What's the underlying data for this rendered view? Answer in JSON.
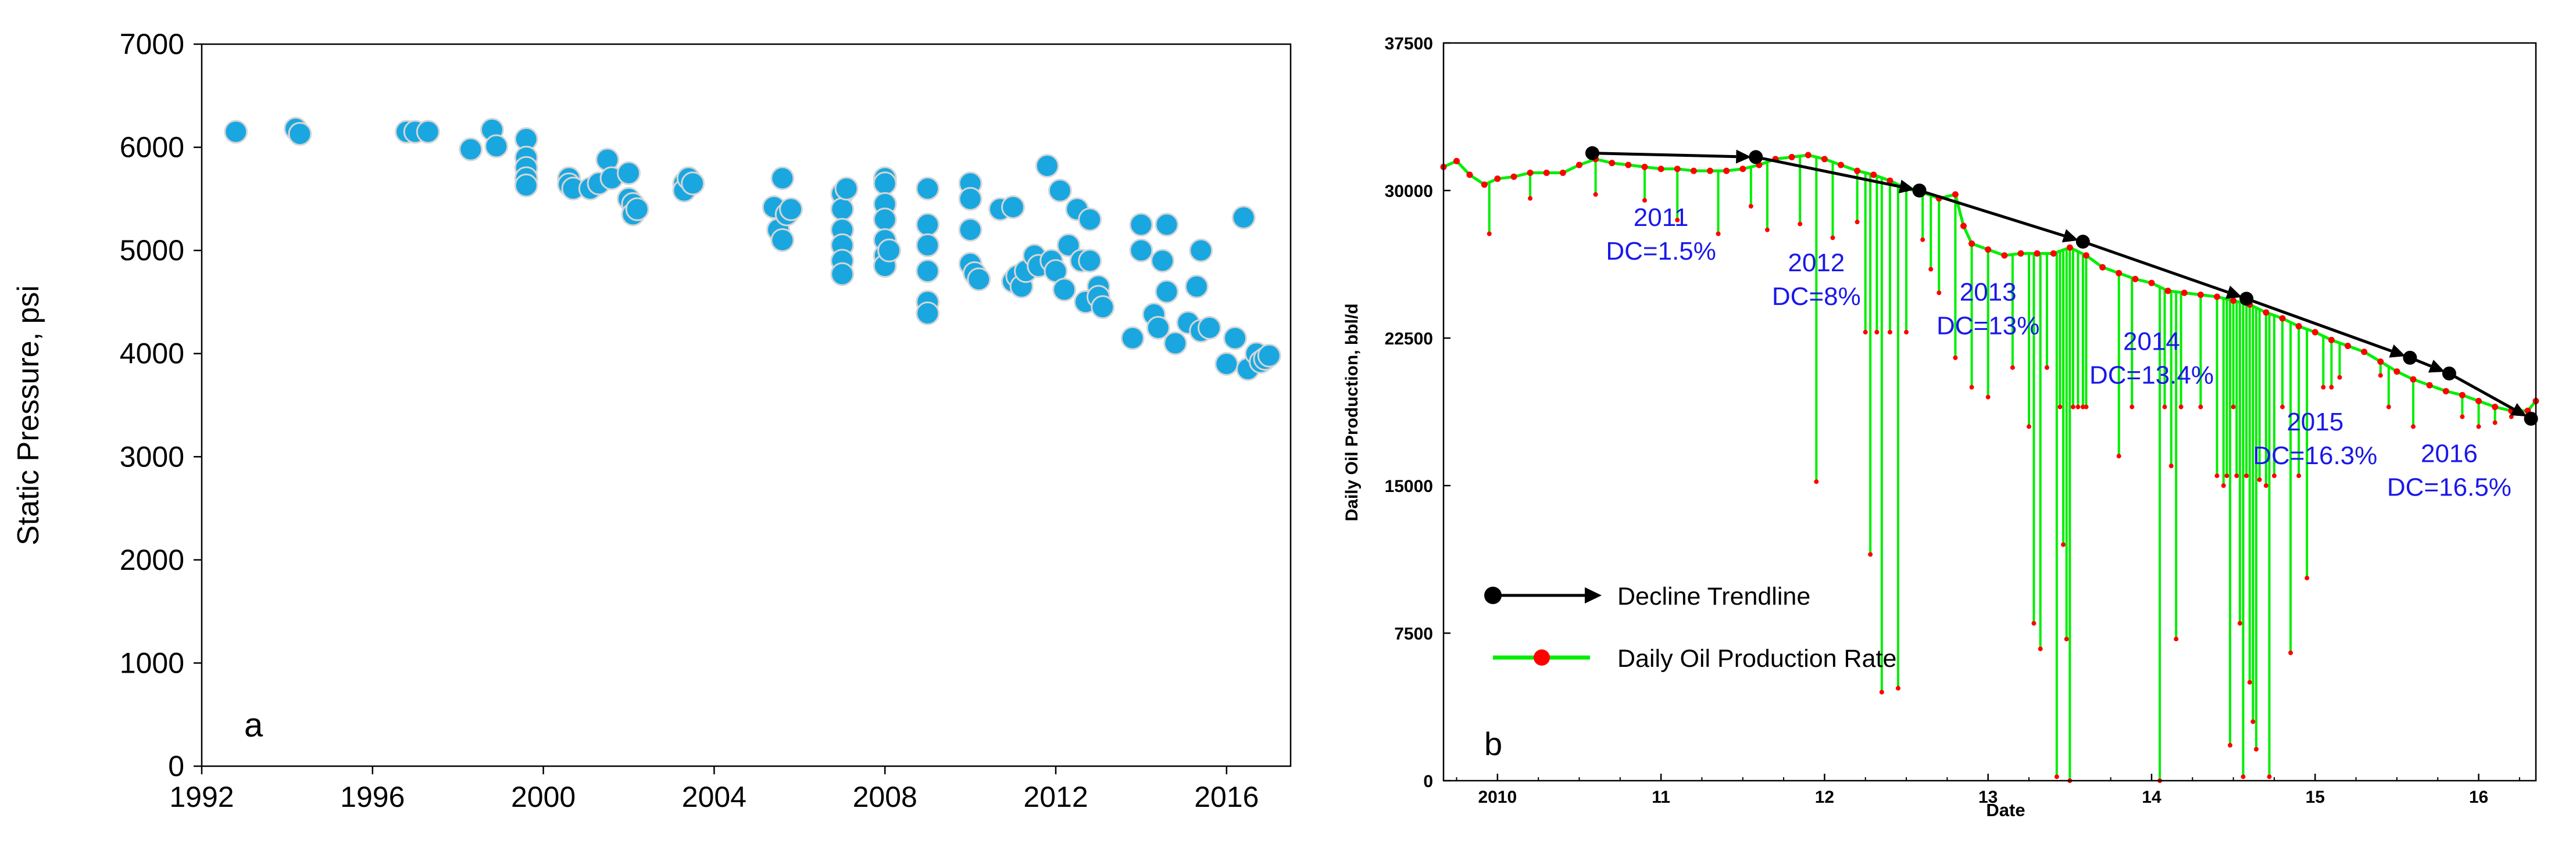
{
  "chart_data": [
    {
      "panel": "a",
      "type": "scatter",
      "title": "",
      "xlabel": "",
      "ylabel": "Static Pressure, psi",
      "xlim": [
        1992,
        2017.5
      ],
      "ylim": [
        0,
        7000
      ],
      "xticks": [
        1992,
        1996,
        2000,
        2004,
        2008,
        2012,
        2016
      ],
      "yticks": [
        0,
        1000,
        2000,
        3000,
        4000,
        5000,
        6000,
        7000
      ],
      "grid": false,
      "marker_color": "#1AA7E0",
      "points": [
        [
          1992.8,
          6150
        ],
        [
          1994.2,
          6180
        ],
        [
          1994.3,
          6130
        ],
        [
          1996.8,
          6150
        ],
        [
          1997.0,
          6150
        ],
        [
          1997.3,
          6150
        ],
        [
          1998.3,
          5980
        ],
        [
          1998.8,
          6170
        ],
        [
          1998.9,
          6010
        ],
        [
          1999.6,
          6080
        ],
        [
          1999.6,
          5900
        ],
        [
          1999.6,
          5800
        ],
        [
          1999.6,
          5700
        ],
        [
          1999.6,
          5630
        ],
        [
          2000.6,
          5700
        ],
        [
          2000.6,
          5640
        ],
        [
          2000.7,
          5600
        ],
        [
          2001.1,
          5600
        ],
        [
          2001.3,
          5650
        ],
        [
          2001.5,
          5880
        ],
        [
          2001.6,
          5700
        ],
        [
          2002.0,
          5750
        ],
        [
          2002.0,
          5500
        ],
        [
          2002.1,
          5450
        ],
        [
          2002.1,
          5350
        ],
        [
          2002.2,
          5400
        ],
        [
          2003.3,
          5650
        ],
        [
          2003.3,
          5580
        ],
        [
          2003.4,
          5700
        ],
        [
          2003.5,
          5650
        ],
        [
          2005.4,
          5420
        ],
        [
          2005.5,
          5200
        ],
        [
          2005.6,
          5700
        ],
        [
          2005.6,
          5100
        ],
        [
          2005.7,
          5350
        ],
        [
          2005.8,
          5400
        ],
        [
          2007.0,
          5550
        ],
        [
          2007.0,
          5400
        ],
        [
          2007.0,
          5200
        ],
        [
          2007.0,
          5050
        ],
        [
          2007.0,
          4900
        ],
        [
          2007.0,
          4770
        ],
        [
          2007.1,
          5600
        ],
        [
          2008.0,
          5700
        ],
        [
          2008.0,
          5650
        ],
        [
          2008.0,
          5450
        ],
        [
          2008.0,
          5300
        ],
        [
          2008.0,
          5100
        ],
        [
          2008.0,
          4950
        ],
        [
          2008.0,
          4850
        ],
        [
          2008.1,
          5000
        ],
        [
          2009.0,
          5600
        ],
        [
          2009.0,
          5250
        ],
        [
          2009.0,
          5050
        ],
        [
          2009.0,
          4800
        ],
        [
          2009.0,
          4500
        ],
        [
          2009.0,
          4390
        ],
        [
          2010.0,
          5650
        ],
        [
          2010.0,
          5500
        ],
        [
          2010.0,
          5200
        ],
        [
          2010.0,
          4870
        ],
        [
          2010.1,
          4780
        ],
        [
          2010.2,
          4720
        ],
        [
          2010.7,
          5400
        ],
        [
          2011.0,
          5420
        ],
        [
          2011.0,
          4700
        ],
        [
          2011.1,
          4750
        ],
        [
          2011.2,
          4650
        ],
        [
          2011.3,
          4800
        ],
        [
          2011.5,
          4950
        ],
        [
          2011.6,
          4850
        ],
        [
          2011.8,
          5820
        ],
        [
          2011.9,
          4900
        ],
        [
          2012.0,
          4800
        ],
        [
          2012.1,
          5580
        ],
        [
          2012.2,
          4620
        ],
        [
          2012.3,
          5050
        ],
        [
          2012.5,
          5400
        ],
        [
          2012.6,
          4900
        ],
        [
          2012.7,
          4500
        ],
        [
          2012.8,
          5300
        ],
        [
          2012.8,
          4900
        ],
        [
          2013.0,
          4650
        ],
        [
          2013.0,
          4550
        ],
        [
          2013.1,
          4450
        ],
        [
          2013.8,
          4150
        ],
        [
          2014.0,
          5250
        ],
        [
          2014.0,
          5000
        ],
        [
          2014.3,
          4380
        ],
        [
          2014.4,
          4250
        ],
        [
          2014.5,
          4900
        ],
        [
          2014.6,
          5250
        ],
        [
          2014.6,
          4600
        ],
        [
          2014.8,
          4100
        ],
        [
          2015.1,
          4300
        ],
        [
          2015.3,
          4650
        ],
        [
          2015.4,
          5000
        ],
        [
          2015.4,
          4220
        ],
        [
          2015.6,
          4250
        ],
        [
          2016.0,
          3900
        ],
        [
          2016.2,
          4150
        ],
        [
          2016.4,
          5320
        ],
        [
          2016.5,
          3850
        ],
        [
          2016.7,
          4000
        ],
        [
          2016.8,
          3920
        ],
        [
          2016.9,
          3950
        ],
        [
          2017.0,
          3980
        ]
      ]
    },
    {
      "panel": "b",
      "type": "line",
      "title": "",
      "xlabel": "Date",
      "ylabel": "Daily Oil Production, bbl/d",
      "xlim": [
        2009.67,
        2016.35
      ],
      "ylim": [
        0,
        37500
      ],
      "xticks": [
        2010,
        2011,
        2012,
        2013,
        2014,
        2015,
        2016
      ],
      "xtick_labels": [
        "2010",
        "11",
        "12",
        "13",
        "14",
        "15",
        "16"
      ],
      "yticks": [
        0,
        7500,
        15000,
        22500,
        30000,
        37500
      ],
      "grid": false,
      "series": [
        {
          "name": "Daily Oil Production Rate",
          "line_color": "#00EE00",
          "marker_color": "#FF0000",
          "baseline_points": [
            [
              2009.67,
              31200
            ],
            [
              2009.75,
              31500
            ],
            [
              2009.83,
              30800
            ],
            [
              2009.92,
              30300
            ],
            [
              2010.0,
              30600
            ],
            [
              2010.1,
              30700
            ],
            [
              2010.2,
              30900
            ],
            [
              2010.3,
              30900
            ],
            [
              2010.4,
              30900
            ],
            [
              2010.5,
              31300
            ],
            [
              2010.6,
              31600
            ],
            [
              2010.7,
              31400
            ],
            [
              2010.8,
              31300
            ],
            [
              2010.9,
              31200
            ],
            [
              2011.0,
              31100
            ],
            [
              2011.1,
              31100
            ],
            [
              2011.2,
              31000
            ],
            [
              2011.3,
              31000
            ],
            [
              2011.4,
              31000
            ],
            [
              2011.5,
              31100
            ],
            [
              2011.6,
              31300
            ],
            [
              2011.7,
              31600
            ],
            [
              2011.8,
              31700
            ],
            [
              2011.9,
              31800
            ],
            [
              2012.0,
              31600
            ],
            [
              2012.1,
              31300
            ],
            [
              2012.2,
              31000
            ],
            [
              2012.3,
              30800
            ],
            [
              2012.4,
              30500
            ],
            [
              2012.5,
              30100
            ],
            [
              2012.6,
              29900
            ],
            [
              2012.7,
              29600
            ],
            [
              2012.8,
              29800
            ],
            [
              2012.85,
              28200
            ],
            [
              2012.9,
              27300
            ],
            [
              2013.0,
              27000
            ],
            [
              2013.1,
              26700
            ],
            [
              2013.2,
              26800
            ],
            [
              2013.3,
              26800
            ],
            [
              2013.4,
              26800
            ],
            [
              2013.5,
              27100
            ],
            [
              2013.6,
              26700
            ],
            [
              2013.7,
              26100
            ],
            [
              2013.8,
              25800
            ],
            [
              2013.9,
              25500
            ],
            [
              2014.0,
              25300
            ],
            [
              2014.1,
              24900
            ],
            [
              2014.2,
              24800
            ],
            [
              2014.3,
              24700
            ],
            [
              2014.4,
              24600
            ],
            [
              2014.5,
              24400
            ],
            [
              2014.6,
              24200
            ],
            [
              2014.7,
              23800
            ],
            [
              2014.8,
              23500
            ],
            [
              2014.9,
              23100
            ],
            [
              2015.0,
              22800
            ],
            [
              2015.1,
              22400
            ],
            [
              2015.2,
              22100
            ],
            [
              2015.3,
              21800
            ],
            [
              2015.4,
              21300
            ],
            [
              2015.5,
              20800
            ],
            [
              2015.6,
              20400
            ],
            [
              2015.7,
              20100
            ],
            [
              2015.8,
              19800
            ],
            [
              2015.9,
              19600
            ],
            [
              2016.0,
              19300
            ],
            [
              2016.1,
              19000
            ],
            [
              2016.2,
              18800
            ],
            [
              2016.3,
              18800
            ],
            [
              2016.35,
              19300
            ]
          ],
          "dips": [
            [
              2009.95,
              27800
            ],
            [
              2010.2,
              29600
            ],
            [
              2010.6,
              29800
            ],
            [
              2010.9,
              29500
            ],
            [
              2011.1,
              28500
            ],
            [
              2011.35,
              27800
            ],
            [
              2011.55,
              29200
            ],
            [
              2011.65,
              28000
            ],
            [
              2011.85,
              28300
            ],
            [
              2011.95,
              15200
            ],
            [
              2012.05,
              27600
            ],
            [
              2012.2,
              28400
            ],
            [
              2012.25,
              22800
            ],
            [
              2012.28,
              11500
            ],
            [
              2012.32,
              22800
            ],
            [
              2012.35,
              4500
            ],
            [
              2012.4,
              22800
            ],
            [
              2012.45,
              4700
            ],
            [
              2012.5,
              22800
            ],
            [
              2012.6,
              27500
            ],
            [
              2012.65,
              26000
            ],
            [
              2012.7,
              24800
            ],
            [
              2012.8,
              21500
            ],
            [
              2012.9,
              20000
            ],
            [
              2013.0,
              19500
            ],
            [
              2013.15,
              21000
            ],
            [
              2013.25,
              18000
            ],
            [
              2013.28,
              8000
            ],
            [
              2013.32,
              6700
            ],
            [
              2013.36,
              21000
            ],
            [
              2013.42,
              200
            ],
            [
              2013.44,
              19000
            ],
            [
              2013.46,
              12000
            ],
            [
              2013.48,
              7200
            ],
            [
              2013.5,
              0
            ],
            [
              2013.52,
              19000
            ],
            [
              2013.55,
              19000
            ],
            [
              2013.58,
              19000
            ],
            [
              2013.6,
              19000
            ],
            [
              2013.8,
              16500
            ],
            [
              2013.88,
              19000
            ],
            [
              2014.05,
              0
            ],
            [
              2014.08,
              19000
            ],
            [
              2014.12,
              16000
            ],
            [
              2014.15,
              7200
            ],
            [
              2014.18,
              19000
            ],
            [
              2014.3,
              19000
            ],
            [
              2014.4,
              15500
            ],
            [
              2014.44,
              15000
            ],
            [
              2014.46,
              15500
            ],
            [
              2014.48,
              1800
            ],
            [
              2014.5,
              19000
            ],
            [
              2014.52,
              15500
            ],
            [
              2014.54,
              8000
            ],
            [
              2014.56,
              200
            ],
            [
              2014.58,
              15500
            ],
            [
              2014.6,
              5000
            ],
            [
              2014.62,
              3000
            ],
            [
              2014.64,
              1600
            ],
            [
              2014.66,
              15300
            ],
            [
              2014.7,
              15000
            ],
            [
              2014.72,
              200
            ],
            [
              2014.75,
              15500
            ],
            [
              2014.8,
              19000
            ],
            [
              2014.85,
              6500
            ],
            [
              2014.9,
              15500
            ],
            [
              2014.95,
              10300
            ],
            [
              2015.05,
              20000
            ],
            [
              2015.1,
              20000
            ],
            [
              2015.15,
              20500
            ],
            [
              2015.4,
              20600
            ],
            [
              2015.45,
              19000
            ],
            [
              2015.6,
              18000
            ],
            [
              2015.9,
              18500
            ],
            [
              2016.0,
              18000
            ],
            [
              2016.1,
              18200
            ],
            [
              2016.2,
              18500
            ]
          ]
        },
        {
          "name": "Decline Trendline",
          "line_color": "#000000",
          "marker_color": "#000000",
          "points": [
            [
              2010.58,
              31900
            ],
            [
              2011.58,
              31700
            ],
            [
              2012.58,
              30000
            ],
            [
              2013.58,
              27400
            ],
            [
              2014.58,
              24500
            ],
            [
              2015.58,
              21500
            ],
            [
              2015.82,
              20700
            ],
            [
              2016.32,
              18400
            ]
          ]
        }
      ],
      "annotations": [
        {
          "year": "2011",
          "dc": "DC=1.5%",
          "x": 2011.0,
          "y": 28200
        },
        {
          "year": "2012",
          "dc": "DC=8%",
          "x": 2011.95,
          "y": 25900
        },
        {
          "year": "2013",
          "dc": "DC=13%",
          "x": 2013.0,
          "y": 24400
        },
        {
          "year": "2014",
          "dc": "DC=13.4%",
          "x": 2014.0,
          "y": 21900
        },
        {
          "year": "2015",
          "dc": "DC=16.3%",
          "x": 2015.0,
          "y": 17800
        },
        {
          "year": "2016",
          "dc": "DC=16.5%",
          "x": 2015.82,
          "y": 16200
        }
      ],
      "annotation_color": "#1A18E8",
      "legend": {
        "placement": "bottom-left",
        "items": [
          "Decline Trendline",
          "Daily Oil Production Rate"
        ]
      }
    }
  ],
  "labels": {
    "panel_a": "a",
    "panel_b": "b"
  }
}
